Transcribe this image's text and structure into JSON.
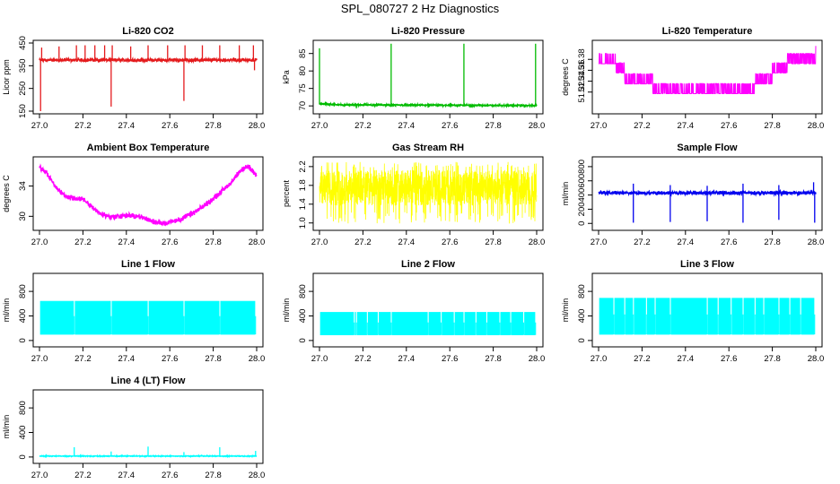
{
  "figure": {
    "title": "SPL_080727  2 Hz Diagnostics"
  },
  "chart_data": [
    {
      "type": "line",
      "title": "Li-820 CO2",
      "ylabel": "Licor ppm",
      "xlabel": "",
      "xlim": [
        27.0,
        28.0
      ],
      "ylim": [
        150,
        450
      ],
      "xticks": [
        "27.0",
        "27.2",
        "27.4",
        "27.6",
        "27.8",
        "28.0"
      ],
      "yticks": [
        "150",
        "250",
        "350",
        "450"
      ],
      "ytick_values": [
        150,
        250,
        350,
        450
      ],
      "color": "#e41a1c",
      "series": [
        {
          "baseline": 375,
          "band": 10,
          "noise": 4,
          "trend": [],
          "spikes": [
            {
              "x": 27.005,
              "y": 150
            },
            {
              "x": 27.01,
              "y": 430
            },
            {
              "x": 27.09,
              "y": 435
            },
            {
              "x": 27.17,
              "y": 440
            },
            {
              "x": 27.21,
              "y": 440
            },
            {
              "x": 27.255,
              "y": 440
            },
            {
              "x": 27.3,
              "y": 440
            },
            {
              "x": 27.335,
              "y": 440
            },
            {
              "x": 27.33,
              "y": 170
            },
            {
              "x": 27.42,
              "y": 435
            },
            {
              "x": 27.5,
              "y": 440
            },
            {
              "x": 27.59,
              "y": 440
            },
            {
              "x": 27.67,
              "y": 440
            },
            {
              "x": 27.665,
              "y": 195
            },
            {
              "x": 27.75,
              "y": 440
            },
            {
              "x": 27.83,
              "y": 440
            },
            {
              "x": 27.92,
              "y": 440
            },
            {
              "x": 27.985,
              "y": 440
            },
            {
              "x": 27.99,
              "y": 330
            }
          ]
        }
      ]
    },
    {
      "type": "line",
      "title": "Li-820 Pressure",
      "ylabel": "kPa",
      "xlabel": "",
      "xlim": [
        27.0,
        28.0
      ],
      "ylim": [
        68.5,
        88
      ],
      "xticks": [
        "27.0",
        "27.2",
        "27.4",
        "27.6",
        "27.8",
        "28.0"
      ],
      "yticks": [
        "70",
        "75",
        "80",
        "85"
      ],
      "ytick_values": [
        70,
        75,
        80,
        85
      ],
      "color": "#00bb00",
      "series": [
        {
          "baseline": 70.2,
          "band": 0.25,
          "noise": 0.15,
          "trend": [
            [
              27.0,
              70.6
            ],
            [
              27.1,
              70.3
            ],
            [
              28.0,
              70.1
            ]
          ],
          "spikes": [
            {
              "x": 27.0,
              "y": 86.5
            },
            {
              "x": 27.33,
              "y": 87.8
            },
            {
              "x": 27.665,
              "y": 87.8
            },
            {
              "x": 27.995,
              "y": 87.8
            },
            {
              "x": 27.17,
              "y": 69.3
            },
            {
              "x": 27.5,
              "y": 69.5
            }
          ]
        }
      ]
    },
    {
      "type": "line",
      "title": "Li-820 Temperature",
      "ylabel": "degrees C",
      "xlabel": "",
      "xlim": [
        27.0,
        28.0
      ],
      "ylim": [
        51.285,
        51.41
      ],
      "xticks": [
        "27.0",
        "27.2",
        "27.4",
        "27.6",
        "27.8",
        "28.0"
      ],
      "yticks": [
        "51.32",
        "51.34",
        "51.36",
        "51.38"
      ],
      "ytick_values": [
        51.32,
        51.34,
        51.36,
        51.38
      ],
      "color": "#ff00ff",
      "series": [
        {
          "quantized": true,
          "step": 0.0186,
          "levels": [
            [
              27.0,
              51.372
            ],
            [
              27.08,
              51.355
            ],
            [
              27.12,
              51.335
            ],
            [
              27.25,
              51.317
            ],
            [
              27.45,
              51.317
            ],
            [
              27.6,
              51.317
            ],
            [
              27.72,
              51.335
            ],
            [
              27.8,
              51.355
            ],
            [
              27.87,
              51.372
            ],
            [
              28.0,
              51.386
            ]
          ],
          "spikes": []
        }
      ]
    },
    {
      "type": "line",
      "title": "Ambient Box Temperature",
      "ylabel": "degrees C",
      "xlabel": "",
      "xlim": [
        27.0,
        28.0
      ],
      "ylim": [
        28.5,
        37.5
      ],
      "xticks": [
        "27.0",
        "27.2",
        "27.4",
        "27.6",
        "27.8",
        "28.0"
      ],
      "yticks": [
        "30",
        "34"
      ],
      "ytick_values": [
        30,
        34
      ],
      "color": "#ff00ff",
      "series": [
        {
          "baseline": null,
          "band": 0.45,
          "noise": 0.2,
          "trend": [
            [
              27.0,
              36.5
            ],
            [
              27.03,
              35.8
            ],
            [
              27.08,
              33.7
            ],
            [
              27.12,
              32.6
            ],
            [
              27.2,
              32.2
            ],
            [
              27.24,
              31.3
            ],
            [
              27.28,
              30.3
            ],
            [
              27.33,
              29.9
            ],
            [
              27.4,
              30.1
            ],
            [
              27.46,
              30.0
            ],
            [
              27.52,
              29.3
            ],
            [
              27.58,
              29.1
            ],
            [
              27.65,
              29.6
            ],
            [
              27.72,
              30.6
            ],
            [
              27.8,
              32.3
            ],
            [
              27.88,
              34.4
            ],
            [
              27.93,
              36.1
            ],
            [
              27.96,
              36.6
            ],
            [
              28.0,
              35.5
            ]
          ],
          "spikes": []
        }
      ]
    },
    {
      "type": "line",
      "title": "Gas Stream RH",
      "ylabel": "percent",
      "xlabel": "",
      "xlim": [
        27.0,
        28.0
      ],
      "ylim": [
        0.9,
        2.35
      ],
      "xticks": [
        "27.0",
        "27.2",
        "27.4",
        "27.6",
        "27.8",
        "28.0"
      ],
      "yticks": [
        "1.0",
        "1.4",
        "1.8",
        "2.2"
      ],
      "ytick_values": [
        1.0,
        1.4,
        1.8,
        2.2
      ],
      "color": "#ffff00",
      "series": [
        {
          "dense": true,
          "center": 1.75,
          "amp": 0.38,
          "extreme_low": 0.98,
          "extreme_high": 2.3,
          "trend": [],
          "spikes": []
        }
      ]
    },
    {
      "type": "line",
      "title": "Sample Flow",
      "ylabel": "ml/min",
      "xlabel": "",
      "xlim": [
        27.0,
        28.0
      ],
      "ylim": [
        -60,
        900
      ],
      "xticks": [
        "27.0",
        "27.2",
        "27.4",
        "27.6",
        "27.8",
        "28.0"
      ],
      "yticks": [
        "0",
        "200",
        "400",
        "600",
        "800"
      ],
      "ytick_values": [
        0,
        200,
        400,
        600,
        800
      ],
      "color": "#0000ee",
      "series": [
        {
          "baseline": 430,
          "band": 35,
          "noise": 12,
          "trend": [],
          "spikes": [
            {
              "x": 27.16,
              "y": 10
            },
            {
              "x": 27.33,
              "y": 20
            },
            {
              "x": 27.5,
              "y": 30
            },
            {
              "x": 27.665,
              "y": 10
            },
            {
              "x": 27.83,
              "y": 50
            },
            {
              "x": 27.995,
              "y": 10
            },
            {
              "x": 27.16,
              "y": 560
            },
            {
              "x": 27.33,
              "y": 540
            },
            {
              "x": 27.5,
              "y": 530
            },
            {
              "x": 27.665,
              "y": 560
            },
            {
              "x": 27.83,
              "y": 540
            },
            {
              "x": 27.99,
              "y": 580
            }
          ]
        }
      ]
    },
    {
      "type": "line",
      "title": "Line 1 Flow",
      "ylabel": "ml/min",
      "xlabel": "",
      "xlim": [
        27.0,
        28.0
      ],
      "ylim": [
        -60,
        1050
      ],
      "xticks": [
        "27.0",
        "27.2",
        "27.4",
        "27.6",
        "27.8",
        "28.0"
      ],
      "yticks": [
        "0",
        "400",
        "800"
      ],
      "ytick_values": [
        0,
        400,
        800
      ],
      "color": "#00ffff",
      "series": [
        {
          "block": true,
          "low": 100,
          "high": 640,
          "gaps": [
            27.16,
            27.33,
            27.5,
            27.665,
            27.83,
            27.995
          ],
          "spikes": []
        }
      ]
    },
    {
      "type": "line",
      "title": "Line 2 Flow",
      "ylabel": "ml/min",
      "xlabel": "",
      "xlim": [
        27.0,
        28.0
      ],
      "ylim": [
        -60,
        1050
      ],
      "xticks": [
        "27.0",
        "27.2",
        "27.4",
        "27.6",
        "27.8",
        "28.0"
      ],
      "yticks": [
        "0",
        "400",
        "800"
      ],
      "ytick_values": [
        0,
        400,
        800
      ],
      "color": "#00ffff",
      "series": [
        {
          "block": true,
          "low": 90,
          "high": 460,
          "gaps": [
            27.16,
            27.17,
            27.22,
            27.27,
            27.33,
            27.5,
            27.56,
            27.62,
            27.665,
            27.72,
            27.77,
            27.83,
            27.88,
            27.94,
            27.995
          ],
          "spikes": []
        }
      ]
    },
    {
      "type": "line",
      "title": "Line 3 Flow",
      "ylabel": "ml/min",
      "xlabel": "",
      "xlim": [
        27.0,
        28.0
      ],
      "ylim": [
        -60,
        1050
      ],
      "xticks": [
        "27.0",
        "27.2",
        "27.4",
        "27.6",
        "27.8",
        "28.0"
      ],
      "yticks": [
        "0",
        "400",
        "800"
      ],
      "ytick_values": [
        0,
        400,
        800
      ],
      "color": "#00ffff",
      "series": [
        {
          "block": true,
          "low": 100,
          "high": 690,
          "gaps": [
            27.07,
            27.12,
            27.16,
            27.22,
            27.26,
            27.33,
            27.5,
            27.55,
            27.61,
            27.665,
            27.72,
            27.76,
            27.83,
            27.88,
            27.93,
            27.995
          ],
          "spikes": []
        }
      ]
    },
    {
      "type": "line",
      "title": "Line 4 (LT) Flow",
      "ylabel": "ml/min",
      "xlabel": "",
      "xlim": [
        27.0,
        28.0
      ],
      "ylim": [
        -60,
        1050
      ],
      "xticks": [
        "27.0",
        "27.2",
        "27.4",
        "27.6",
        "27.8",
        "28.0"
      ],
      "yticks": [
        "0",
        "400",
        "800"
      ],
      "ytick_values": [
        0,
        400,
        800
      ],
      "color": "#00ffff",
      "series": [
        {
          "baseline": 15,
          "band": 8,
          "noise": 4,
          "trend": [],
          "spikes": [
            {
              "x": 27.16,
              "y": 160
            },
            {
              "x": 27.33,
              "y": 90
            },
            {
              "x": 27.5,
              "y": 170
            },
            {
              "x": 27.665,
              "y": 80
            },
            {
              "x": 27.83,
              "y": 160
            },
            {
              "x": 27.995,
              "y": 100
            }
          ]
        }
      ]
    }
  ]
}
